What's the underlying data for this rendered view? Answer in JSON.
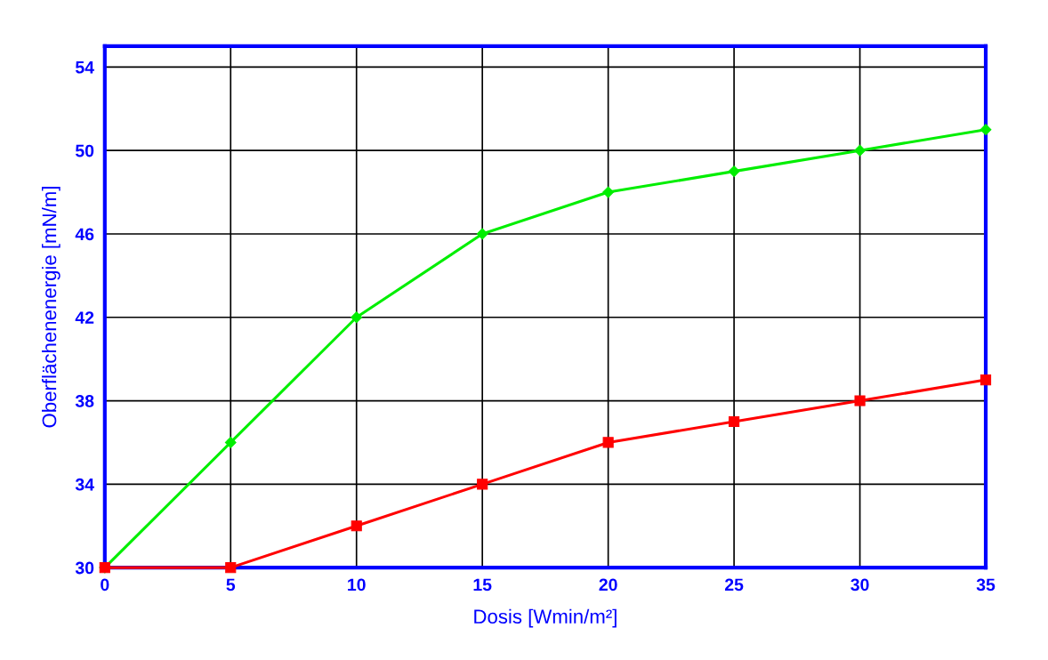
{
  "chart_data": {
    "type": "line",
    "xlabel": "Dosis [Wmin/m²]",
    "ylabel": "Oberflächenenergie [mN/m]",
    "x": [
      0,
      5,
      10,
      15,
      20,
      25,
      30,
      35
    ],
    "series": [
      {
        "color": "#00ee00",
        "marker": "diamond",
        "values": [
          30,
          36,
          42,
          46,
          48,
          49,
          50,
          51
        ]
      },
      {
        "color": "#ff0000",
        "marker": "square",
        "values": [
          30,
          30,
          32,
          34,
          36,
          37,
          38,
          39
        ]
      }
    ],
    "xlim": [
      0,
      35
    ],
    "xticks": [
      0,
      5,
      10,
      15,
      20,
      25,
      30,
      35
    ],
    "ylim": [
      30,
      55
    ],
    "yticks": [
      30,
      34,
      38,
      42,
      46,
      50,
      54
    ],
    "grid": true,
    "line_style": "solid"
  }
}
